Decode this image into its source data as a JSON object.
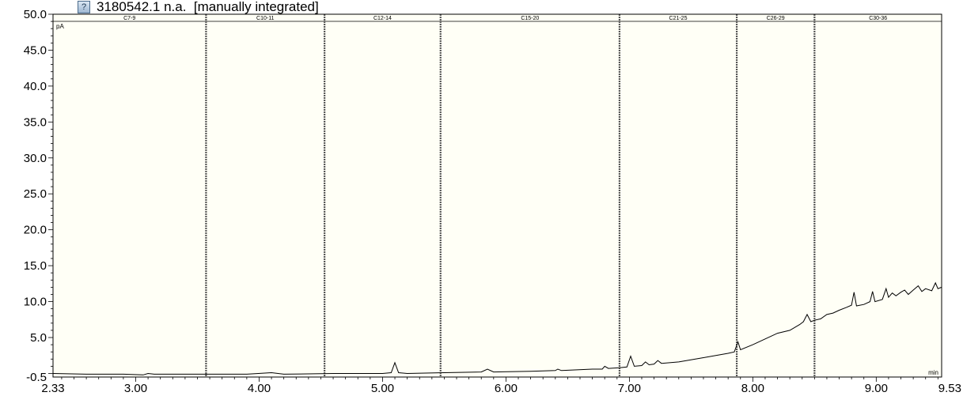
{
  "header": {
    "icon": "document-icon",
    "title": "3180542.1 n.a.  [manually integrated]"
  },
  "chart_data": {
    "type": "line",
    "title": "3180542.1 n.a.  [manually integrated]",
    "ylabel": "pA",
    "xlabel": "min",
    "xlim": [
      2.33,
      9.53
    ],
    "ylim": [
      -0.5,
      50.0
    ],
    "x_ticks": [
      "2.33",
      "3.00",
      "4.00",
      "5.00",
      "6.00",
      "7.00",
      "8.00",
      "9.00",
      "9.53"
    ],
    "y_ticks": [
      "-0.5",
      "5.0",
      "10.0",
      "15.0",
      "20.0",
      "25.0",
      "30.0",
      "35.0",
      "40.0",
      "45.0",
      "50.0"
    ],
    "regions": [
      {
        "label": "C7-9",
        "start": 2.33,
        "end": 3.57
      },
      {
        "label": "C10-11",
        "start": 3.57,
        "end": 4.53
      },
      {
        "label": "C12-14",
        "start": 4.53,
        "end": 5.47
      },
      {
        "label": "C15-20",
        "start": 5.47,
        "end": 6.92
      },
      {
        "label": "C21-25",
        "start": 6.92,
        "end": 7.87
      },
      {
        "label": "C26-29",
        "start": 7.87,
        "end": 8.5
      },
      {
        "label": "C30-36",
        "start": 8.5,
        "end": 9.53
      }
    ],
    "series": [
      {
        "values": [
          [
            2.33,
            0.0
          ],
          [
            2.6,
            -0.1
          ],
          [
            2.9,
            -0.1
          ],
          [
            3.06,
            -0.2
          ],
          [
            3.1,
            0.0
          ],
          [
            3.15,
            -0.1
          ],
          [
            3.3,
            -0.1
          ],
          [
            3.6,
            -0.1
          ],
          [
            3.9,
            -0.1
          ],
          [
            4.1,
            0.1
          ],
          [
            4.2,
            -0.1
          ],
          [
            4.6,
            0.0
          ],
          [
            5.0,
            0.0
          ],
          [
            5.07,
            0.1
          ],
          [
            5.1,
            1.5
          ],
          [
            5.13,
            0.1
          ],
          [
            5.2,
            0.0
          ],
          [
            5.5,
            0.1
          ],
          [
            5.8,
            0.2
          ],
          [
            5.85,
            0.6
          ],
          [
            5.9,
            0.2
          ],
          [
            6.2,
            0.3
          ],
          [
            6.4,
            0.4
          ],
          [
            6.42,
            0.6
          ],
          [
            6.45,
            0.4
          ],
          [
            6.7,
            0.6
          ],
          [
            6.78,
            0.6
          ],
          [
            6.8,
            1.0
          ],
          [
            6.83,
            0.7
          ],
          [
            6.92,
            0.8
          ],
          [
            6.98,
            0.9
          ],
          [
            7.01,
            2.4
          ],
          [
            7.04,
            1.0
          ],
          [
            7.1,
            1.1
          ],
          [
            7.13,
            1.6
          ],
          [
            7.16,
            1.2
          ],
          [
            7.2,
            1.3
          ],
          [
            7.23,
            1.8
          ],
          [
            7.26,
            1.4
          ],
          [
            7.4,
            1.6
          ],
          [
            7.6,
            2.2
          ],
          [
            7.8,
            2.8
          ],
          [
            7.85,
            3.0
          ],
          [
            7.88,
            4.4
          ],
          [
            7.9,
            3.3
          ],
          [
            8.0,
            4.0
          ],
          [
            8.1,
            4.8
          ],
          [
            8.2,
            5.6
          ],
          [
            8.3,
            6.0
          ],
          [
            8.38,
            6.8
          ],
          [
            8.41,
            7.2
          ],
          [
            8.44,
            8.2
          ],
          [
            8.47,
            7.2
          ],
          [
            8.5,
            7.4
          ],
          [
            8.55,
            7.6
          ],
          [
            8.6,
            8.2
          ],
          [
            8.65,
            8.4
          ],
          [
            8.7,
            8.8
          ],
          [
            8.76,
            9.2
          ],
          [
            8.8,
            9.5
          ],
          [
            8.82,
            11.3
          ],
          [
            8.84,
            9.4
          ],
          [
            8.9,
            9.6
          ],
          [
            8.95,
            10.0
          ],
          [
            8.97,
            11.4
          ],
          [
            8.99,
            10.0
          ],
          [
            9.05,
            10.3
          ],
          [
            9.08,
            11.8
          ],
          [
            9.1,
            10.6
          ],
          [
            9.13,
            11.2
          ],
          [
            9.16,
            10.8
          ],
          [
            9.2,
            11.3
          ],
          [
            9.23,
            11.6
          ],
          [
            9.26,
            11.0
          ],
          [
            9.3,
            11.6
          ],
          [
            9.34,
            12.2
          ],
          [
            9.37,
            11.4
          ],
          [
            9.4,
            11.8
          ],
          [
            9.45,
            11.5
          ],
          [
            9.48,
            12.6
          ],
          [
            9.5,
            11.8
          ],
          [
            9.53,
            12.0
          ]
        ]
      }
    ],
    "grid": false,
    "colors": {
      "background": "#fffff6",
      "line": "#000000",
      "region_border": "#555555"
    }
  }
}
